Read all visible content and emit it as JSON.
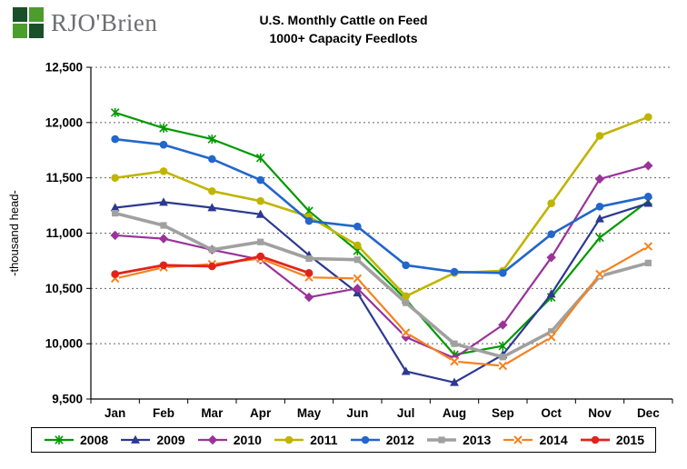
{
  "logo": {
    "text": "RJO'Brien"
  },
  "title": {
    "line1": "U.S. Monthly Cattle on Feed",
    "line2": "1000+ Capacity Feedlots"
  },
  "chart_data": {
    "type": "line",
    "title": "U.S. Monthly Cattle on Feed",
    "subtitle": "1000+ Capacity Feedlots",
    "xlabel": "",
    "ylabel": "-thousand head-",
    "ylim": [
      9500,
      12500
    ],
    "yticks": [
      9500,
      10000,
      10500,
      11000,
      11500,
      12000,
      12500
    ],
    "grid": "horizontal-dashed",
    "legend_position": "bottom",
    "categories": [
      "Jan",
      "Feb",
      "Mar",
      "Apr",
      "May",
      "Jun",
      "Jul",
      "Aug",
      "Sep",
      "Oct",
      "Nov",
      "Dec"
    ],
    "series": [
      {
        "name": "2008",
        "color": "#009900",
        "marker": "asterisk",
        "width": 2.2,
        "values": [
          12090,
          11950,
          11850,
          11680,
          11200,
          10840,
          10400,
          9900,
          9980,
          10420,
          10960,
          11290
        ]
      },
      {
        "name": "2009",
        "color": "#2B3990",
        "marker": "triangle",
        "width": 2.2,
        "values": [
          11230,
          11280,
          11230,
          11170,
          10800,
          10460,
          9750,
          9650,
          9900,
          10450,
          11130,
          11270
        ]
      },
      {
        "name": "2010",
        "color": "#993399",
        "marker": "diamond",
        "width": 2.2,
        "values": [
          10980,
          10950,
          10850,
          10760,
          10420,
          10500,
          10060,
          9870,
          10170,
          10780,
          11490,
          11610
        ]
      },
      {
        "name": "2011",
        "color": "#BFB500",
        "marker": "circle",
        "width": 2.6,
        "values": [
          11500,
          11560,
          11380,
          11290,
          11150,
          10890,
          10430,
          10640,
          10660,
          11270,
          11880,
          12050
        ]
      },
      {
        "name": "2012",
        "color": "#2366CC",
        "marker": "circle",
        "width": 2.6,
        "values": [
          11850,
          11800,
          11670,
          11480,
          11110,
          11060,
          10710,
          10650,
          10640,
          10990,
          11240,
          11330
        ]
      },
      {
        "name": "2013",
        "color": "#A0A0A0",
        "marker": "square",
        "width": 3.6,
        "values": [
          11180,
          11070,
          10850,
          10920,
          10770,
          10760,
          10370,
          10000,
          9880,
          10110,
          10610,
          10730
        ]
      },
      {
        "name": "2014",
        "color": "#F58220",
        "marker": "x",
        "width": 2.2,
        "values": [
          10590,
          10690,
          10720,
          10770,
          10600,
          10590,
          10100,
          9840,
          9800,
          10060,
          10630,
          10880
        ]
      },
      {
        "name": "2015",
        "color": "#E2231A",
        "marker": "circle",
        "width": 2.8,
        "values": [
          10630,
          10710,
          10700,
          10790,
          10640
        ]
      }
    ]
  }
}
